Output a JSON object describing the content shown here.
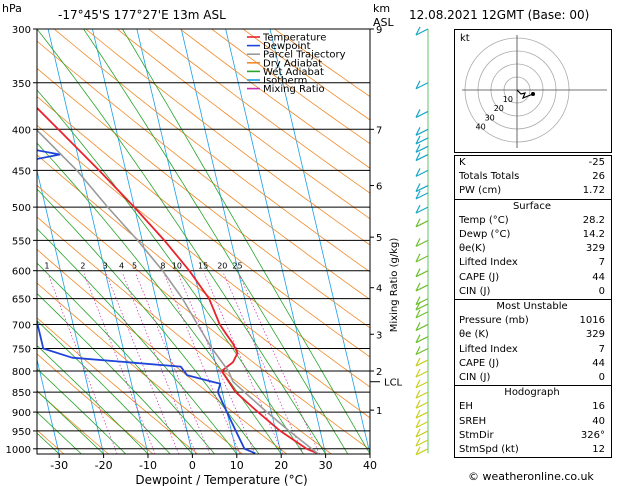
{
  "header": {
    "hpa_label": "hPa",
    "location": "-17°45'S  177°27'E  13m  ASL",
    "km_label": "km",
    "asl_label": "ASL",
    "datetime": "12.08.2021  12GMT  (Base: 00)"
  },
  "chart_data": {
    "type": "line",
    "title": "",
    "xlabel": "Dewpoint / Temperature (°C)",
    "ylabel": "hPa",
    "right_label": "Mixing Ratio (g/kg)",
    "xlim": [
      -35,
      40
    ],
    "ylim": [
      1015,
      300
    ],
    "skew_deg_per_decade_log_p": 0,
    "x_ticks": [
      -30,
      -20,
      -10,
      0,
      10,
      20,
      30,
      40
    ],
    "pressure_levels": [
      300,
      350,
      400,
      450,
      500,
      550,
      600,
      650,
      700,
      750,
      800,
      850,
      900,
      950,
      1000
    ],
    "km_ticks": [
      {
        "p": 300,
        "label": "9"
      },
      {
        "p": 400,
        "label": "7"
      },
      {
        "p": 470,
        "label": "6"
      },
      {
        "p": 545,
        "label": "5"
      },
      {
        "p": 630,
        "label": "4"
      },
      {
        "p": 720,
        "label": "3"
      },
      {
        "p": 800,
        "label": "2"
      },
      {
        "p": 895,
        "label": "1"
      }
    ],
    "lcl": {
      "p": 825,
      "label": "LCL"
    },
    "mixing_ratio_labels": [
      "1",
      "2",
      "3",
      "4",
      "5",
      "8",
      "10",
      "15",
      "20",
      "25"
    ],
    "mixing_ratio_values": [
      1,
      2,
      3,
      4,
      5,
      8,
      10,
      15,
      20,
      25
    ],
    "legend": [
      {
        "name": "Temperature",
        "color": "#e8232d"
      },
      {
        "name": "Dewpoint",
        "color": "#1f44d8"
      },
      {
        "name": "Parcel Trajectory",
        "color": "#9a9a9a"
      },
      {
        "name": "Dry Adiabat",
        "color": "#f08a2a"
      },
      {
        "name": "Wet Adiabat",
        "color": "#2aa52a"
      },
      {
        "name": "Isotherm",
        "color": "#1aa0e6"
      },
      {
        "name": "Mixing Ratio",
        "color": "#cc2ab0"
      }
    ],
    "series": [
      {
        "name": "Temperature",
        "color": "#e8232d",
        "points": [
          [
            1013,
            28.2
          ],
          [
            1000,
            26
          ],
          [
            950,
            21
          ],
          [
            900,
            17
          ],
          [
            850,
            13
          ],
          [
            800,
            11
          ],
          [
            780,
            14
          ],
          [
            760,
            15.5
          ],
          [
            740,
            15
          ],
          [
            720,
            14
          ],
          [
            700,
            13
          ],
          [
            650,
            12
          ],
          [
            600,
            9
          ],
          [
            550,
            5
          ],
          [
            500,
            0
          ],
          [
            450,
            -6
          ],
          [
            400,
            -13
          ],
          [
            350,
            -21
          ],
          [
            300,
            -31
          ]
        ]
      },
      {
        "name": "Dewpoint",
        "color": "#1f44d8",
        "points": [
          [
            1013,
            14.2
          ],
          [
            1000,
            12
          ],
          [
            950,
            11
          ],
          [
            900,
            10
          ],
          [
            850,
            9
          ],
          [
            830,
            10
          ],
          [
            810,
            3
          ],
          [
            790,
            2
          ],
          [
            770,
            -22
          ],
          [
            750,
            -28
          ],
          [
            700,
            -28
          ],
          [
            650,
            -28
          ],
          [
            600,
            -31
          ],
          [
            550,
            -36
          ],
          [
            500,
            -41
          ],
          [
            450,
            -33
          ],
          [
            430,
            -14
          ],
          [
            400,
            -43
          ],
          [
            350,
            -45
          ],
          [
            300,
            -49
          ]
        ]
      },
      {
        "name": "Parcel Trajectory",
        "color": "#9a9a9a",
        "points": [
          [
            1013,
            28.2
          ],
          [
            950,
            23
          ],
          [
            900,
            19
          ],
          [
            850,
            15
          ],
          [
            825,
            13
          ],
          [
            800,
            12.5
          ],
          [
            750,
            10
          ],
          [
            700,
            8
          ],
          [
            650,
            6
          ],
          [
            600,
            3
          ],
          [
            550,
            -1
          ],
          [
            500,
            -6
          ],
          [
            450,
            -11
          ],
          [
            400,
            -18
          ],
          [
            350,
            -26
          ],
          [
            300,
            -36
          ]
        ]
      }
    ]
  },
  "hodograph": {
    "label": "kt",
    "rings": [
      "10",
      "20",
      "30",
      "40"
    ]
  },
  "indices": {
    "k_label": "K",
    "k_value": "-25",
    "tt_label": "Totals Totals",
    "tt_value": "26",
    "pw_label": "PW (cm)",
    "pw_value": "1.72"
  },
  "surface": {
    "title": "Surface",
    "rows": [
      {
        "label": "Temp (°C)",
        "value": "28.2"
      },
      {
        "label": "Dewp (°C)",
        "value": "14.2"
      },
      {
        "label": "θe(K)",
        "value": "329"
      },
      {
        "label": "Lifted Index",
        "value": "7"
      },
      {
        "label": "CAPE (J)",
        "value": "44"
      },
      {
        "label": "CIN (J)",
        "value": "0"
      }
    ]
  },
  "most_unstable": {
    "title": "Most Unstable",
    "rows": [
      {
        "label": "Pressure (mb)",
        "value": "1016"
      },
      {
        "label": "θe (K)",
        "value": "329"
      },
      {
        "label": "Lifted Index",
        "value": "7"
      },
      {
        "label": "CAPE (J)",
        "value": "44"
      },
      {
        "label": "CIN (J)",
        "value": "0"
      }
    ]
  },
  "hodograph_table": {
    "title": "Hodograph",
    "rows": [
      {
        "label": "EH",
        "value": "16"
      },
      {
        "label": "SREH",
        "value": "40"
      },
      {
        "label": "StmDir",
        "value": "326°"
      },
      {
        "label": "StmSpd (kt)",
        "value": "12"
      }
    ]
  },
  "footer": {
    "credit": "© weatheronline.co.uk"
  }
}
